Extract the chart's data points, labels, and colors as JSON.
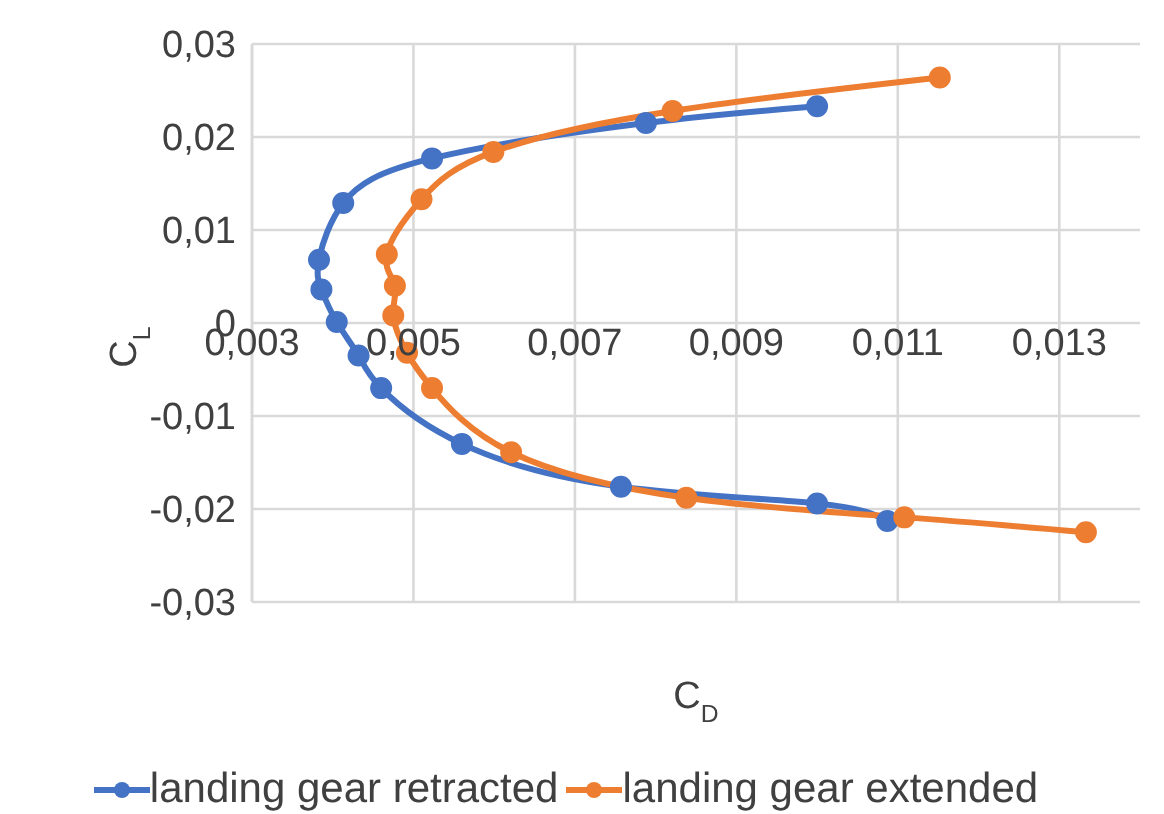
{
  "chart_data": {
    "type": "line",
    "xlabel": "C$_{D}$",
    "ylabel": "C$_{L}$",
    "xlim": [
      0.003,
      0.014
    ],
    "xticks": [
      {
        "value": 0.003,
        "label": "0,003"
      },
      {
        "value": 0.005,
        "label": "0,005"
      },
      {
        "value": 0.007,
        "label": "0,007"
      },
      {
        "value": 0.009,
        "label": "0,009"
      },
      {
        "value": 0.011,
        "label": "0,011"
      },
      {
        "value": 0.013,
        "label": "0,013"
      }
    ],
    "ylim": [
      -0.03,
      0.03
    ],
    "yticks": [
      {
        "value": -0.03,
        "label": "-0,03"
      },
      {
        "value": -0.02,
        "label": "-0,02"
      },
      {
        "value": -0.01,
        "label": "-0,01"
      },
      {
        "value": 0,
        "label": "0"
      },
      {
        "value": 0.01,
        "label": "0,01"
      },
      {
        "value": 0.02,
        "label": "0,02"
      },
      {
        "value": 0.03,
        "label": "0,03"
      }
    ],
    "grid": true,
    "legend": "bottom",
    "marker": "circle",
    "series": [
      {
        "name": "landing gear retracted",
        "color": "#4472c4",
        "x": [
          0.01,
          0.00788,
          0.00523,
          0.00413,
          0.00383,
          0.00386,
          0.00405,
          0.00432,
          0.0046,
          0.0056,
          0.00757,
          0.01,
          0.01087
        ],
        "values": [
          0.0233,
          0.0215,
          0.0177,
          0.0129,
          0.0068,
          0.0036,
          0.0001,
          -0.0035,
          -0.007,
          -0.013,
          -0.0176,
          -0.0194,
          -0.0213
        ]
      },
      {
        "name": "landing gear extended",
        "color": "#ed7d31",
        "x": [
          0.01152,
          0.00821,
          0.00599,
          0.0051,
          0.00467,
          0.00477,
          0.00475,
          0.00492,
          0.00523,
          0.00621,
          0.00838,
          0.01108,
          0.01333
        ],
        "values": [
          0.0264,
          0.0228,
          0.0184,
          0.0133,
          0.0074,
          0.004,
          0.0008,
          -0.0032,
          -0.007,
          -0.0139,
          -0.0188,
          -0.0209,
          -0.0225
        ]
      }
    ]
  }
}
